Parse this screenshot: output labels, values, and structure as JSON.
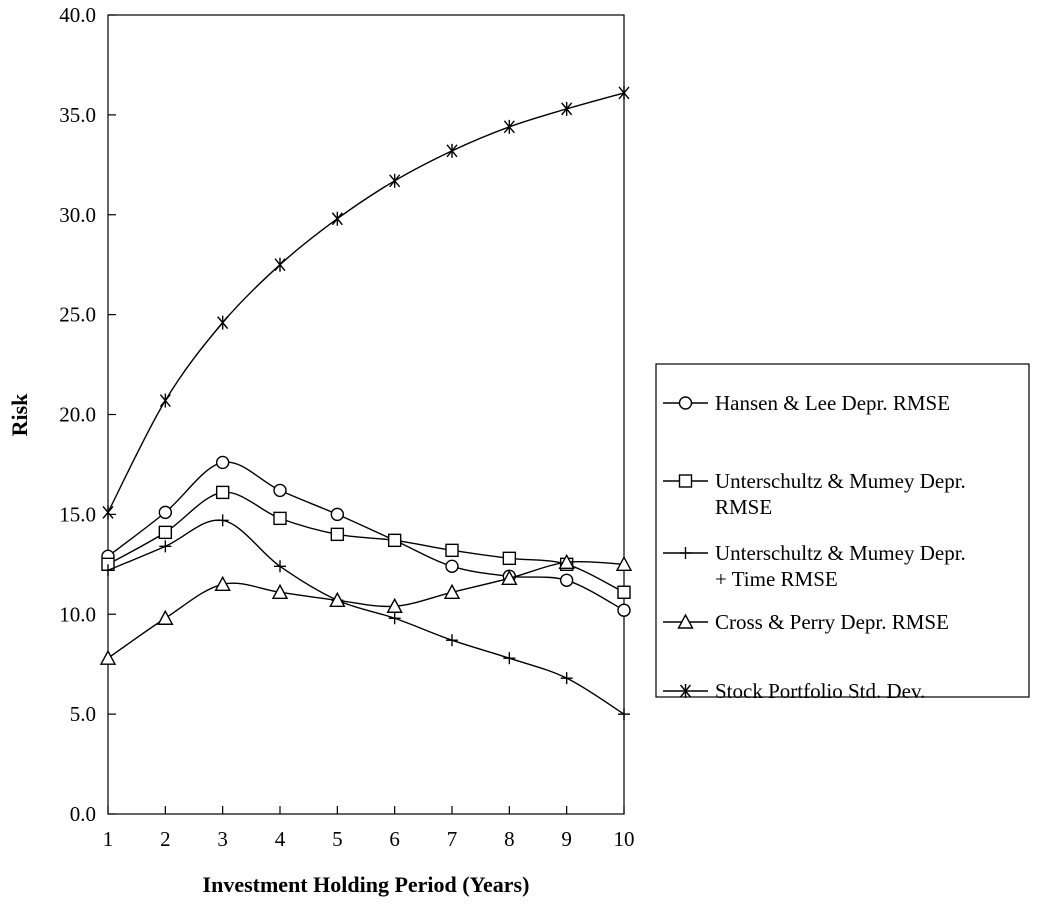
{
  "chart_data": {
    "type": "line",
    "xlabel": "Investment Holding Period (Years)",
    "ylabel": "Risk",
    "x": [
      1,
      2,
      3,
      4,
      5,
      6,
      7,
      8,
      9,
      10
    ],
    "xlim": [
      1,
      10
    ],
    "ylim": [
      0,
      40
    ],
    "y_ticks": [
      "0.0",
      "5.0",
      "10.0",
      "15.0",
      "20.0",
      "25.0",
      "30.0",
      "35.0",
      "40.0"
    ],
    "x_ticks": [
      "1",
      "2",
      "3",
      "4",
      "5",
      "6",
      "7",
      "8",
      "9",
      "10"
    ],
    "grid": false,
    "legend_position": "right",
    "series": [
      {
        "name": "Hansen & Lee Depr. RMSE",
        "legend_lines": [
          "Hansen & Lee Depr. RMSE"
        ],
        "marker": "circle",
        "values": [
          12.9,
          15.1,
          17.6,
          16.2,
          15.0,
          13.7,
          12.4,
          11.9,
          11.7,
          10.2
        ]
      },
      {
        "name": "Unterschultz & Mumey Depr. RMSE",
        "legend_lines": [
          "Unterschultz & Mumey Depr.",
          "RMSE"
        ],
        "marker": "square",
        "values": [
          12.5,
          14.1,
          16.1,
          14.8,
          14.0,
          13.7,
          13.2,
          12.8,
          12.5,
          11.1
        ]
      },
      {
        "name": "Unterschultz & Mumey Depr. + Time RMSE",
        "legend_lines": [
          "Unterschultz & Mumey Depr.",
          "+ Time RMSE"
        ],
        "marker": "plus",
        "values": [
          12.2,
          13.4,
          14.7,
          12.4,
          10.7,
          9.8,
          8.7,
          7.8,
          6.8,
          5.0
        ]
      },
      {
        "name": "Cross & Perry Depr. RMSE",
        "legend_lines": [
          "Cross & Perry Depr. RMSE"
        ],
        "marker": "triangle",
        "values": [
          7.8,
          9.8,
          11.5,
          11.1,
          10.7,
          10.4,
          11.1,
          11.8,
          12.6,
          12.5
        ]
      },
      {
        "name": "Stock Portfolio Std. Dev.",
        "legend_lines": [
          "Stock Portfolio Std. Dev."
        ],
        "marker": "star",
        "values": [
          15.1,
          20.7,
          24.6,
          27.5,
          29.8,
          31.7,
          33.2,
          34.4,
          35.3,
          36.1
        ]
      }
    ]
  }
}
